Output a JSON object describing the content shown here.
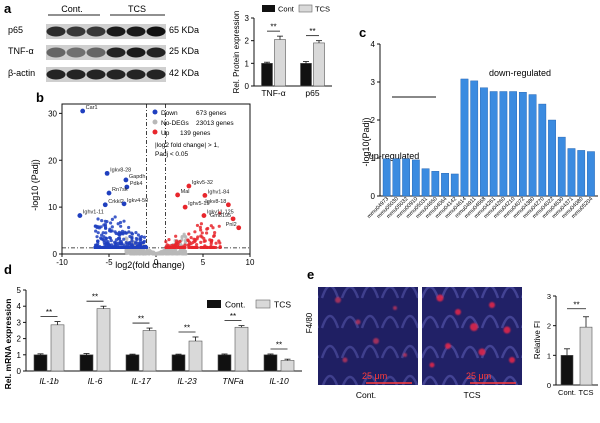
{
  "panel_letters": {
    "a": "a",
    "b": "b",
    "c": "c",
    "d": "d",
    "e": "e"
  },
  "colors": {
    "control": "#111111",
    "treatment": "#d9d9d9",
    "down": "#1f3fbf",
    "up": "#e8262c",
    "nodeg": "#b8b8b8",
    "column": "#3b8be0"
  },
  "panel_a": {
    "blot_groups": [
      "Cont.",
      "TCS"
    ],
    "blot_proteins": [
      "p65",
      "TNF-α",
      "β-actin"
    ],
    "blot_weights": [
      "65 KDa",
      "25 KDa",
      "42 KDa"
    ],
    "chart_data": {
      "type": "bar",
      "categories": [
        "TNF-α",
        "p65"
      ],
      "series": [
        {
          "name": "Cont",
          "values": [
            1.0,
            1.0
          ],
          "errors": [
            0.05,
            0.08
          ]
        },
        {
          "name": "TCS",
          "values": [
            2.05,
            1.9
          ],
          "errors": [
            0.15,
            0.1
          ]
        }
      ],
      "ylabel": "Rel. Protein expression",
      "ylim": [
        0,
        3
      ],
      "yticks": [
        "0",
        "1",
        "2",
        "3"
      ],
      "significance": [
        "**",
        "**"
      ]
    }
  },
  "panel_b": {
    "chart_data": {
      "type": "scatter",
      "xlabel": "log2(fold change)",
      "ylabel": "-log10 (Padj)",
      "xlim": [
        -10,
        10
      ],
      "ylim": [
        0,
        32
      ],
      "xticks": [
        "-10",
        "-5",
        "0",
        "5",
        "10"
      ],
      "yticks": [
        "0",
        "10",
        "20",
        "30"
      ],
      "legend": [
        {
          "label": "Down",
          "count": "673 genes"
        },
        {
          "label": "No-DEGs",
          "count": "23013 genes"
        },
        {
          "label": "Up",
          "count": "139 genes"
        }
      ],
      "criterion": [
        "|log2 fold change| > 1,",
        "Padj < 0.05"
      ],
      "labeled_genes": [
        {
          "gene": "Car1",
          "x": -7.8,
          "y": 30.5,
          "group": "down"
        },
        {
          "gene": "Igkv8-28",
          "x": -5.2,
          "y": 17.2,
          "group": "down"
        },
        {
          "gene": "Gapdh",
          "x": -3.2,
          "y": 15.8,
          "group": "down"
        },
        {
          "gene": "Pdk4",
          "x": -3.1,
          "y": 14.3,
          "group": "down"
        },
        {
          "gene": "Rn7sk",
          "x": -5.0,
          "y": 13.0,
          "group": "down"
        },
        {
          "gene": "Crkkl2",
          "x": -5.4,
          "y": 10.5,
          "group": "down"
        },
        {
          "gene": "Igkv4-50",
          "x": -3.4,
          "y": 10.7,
          "group": "down"
        },
        {
          "gene": "Ighv1-11",
          "x": -8.1,
          "y": 8.2,
          "group": "down"
        },
        {
          "gene": "Igkv5-32",
          "x": 3.5,
          "y": 14.5,
          "group": "up"
        },
        {
          "gene": "Mal",
          "x": 2.3,
          "y": 12.6,
          "group": "up"
        },
        {
          "gene": "Ighv1-84",
          "x": 5.2,
          "y": 12.5,
          "group": "up"
        },
        {
          "gene": "Ighv5-15",
          "x": 3.1,
          "y": 10.0,
          "group": "up"
        },
        {
          "gene": "Igkv8-18",
          "x": 7.7,
          "y": 10.5,
          "group": "up"
        },
        {
          "gene": "Igkv11-125",
          "x": 5.1,
          "y": 8.2,
          "group": "up"
        },
        {
          "gene": "Gm8195",
          "x": 8.2,
          "y": 7.5,
          "group": "up"
        },
        {
          "gene": "Pnl2",
          "x": 8.8,
          "y": 5.6,
          "group": "up"
        }
      ]
    }
  },
  "panel_c": {
    "chart_data": {
      "type": "bar",
      "ylabel": "-log10(Padj)",
      "ylim": [
        0,
        4
      ],
      "yticks": [
        "0",
        "1",
        "2",
        "3",
        "4"
      ],
      "group_labels": [
        "up-regulated",
        "down-regulated"
      ],
      "categories": [
        "mmu04973",
        "mmu05030",
        "mmu05032",
        "mmu00910",
        "mmu05031",
        "mmu04650",
        "mmu04064",
        "mmu04142",
        "mmu04614",
        "mmu04911",
        "mmu04668",
        "mmu04261",
        "mmu04260",
        "mmu04210",
        "mmu04072",
        "mmu04380",
        "mmu04270",
        "mmu04022",
        "mmu04630",
        "mmu04371",
        "mmu04080",
        "mmu05204"
      ],
      "values": [
        0.98,
        0.98,
        0.98,
        0.95,
        0.72,
        0.65,
        0.6,
        0.58,
        3.08,
        3.03,
        2.85,
        2.75,
        2.75,
        2.75,
        2.73,
        2.67,
        2.42,
        2.0,
        1.55,
        1.25,
        1.2,
        1.17
      ],
      "groups": [
        "up",
        "up",
        "up",
        "up",
        "up",
        "up",
        "up",
        "up",
        "down",
        "down",
        "down",
        "down",
        "down",
        "down",
        "down",
        "down",
        "down",
        "down",
        "down",
        "down",
        "down",
        "down"
      ]
    }
  },
  "panel_d": {
    "chart_data": {
      "type": "bar",
      "categories": [
        "IL-1b",
        "IL-6",
        "IL-17",
        "IL-23",
        "TNFa",
        "IL-10"
      ],
      "series": [
        {
          "name": "Cont.",
          "values": [
            1.0,
            1.0,
            1.0,
            1.0,
            1.0,
            1.0
          ],
          "errors": [
            0.06,
            0.08,
            0.04,
            0.04,
            0.05,
            0.05
          ]
        },
        {
          "name": "TCS",
          "values": [
            2.85,
            3.85,
            2.5,
            1.85,
            2.7,
            0.65
          ],
          "errors": [
            0.2,
            0.15,
            0.15,
            0.25,
            0.1,
            0.08
          ]
        }
      ],
      "ylabel": "Rel. mRNA expression",
      "ylim": [
        0,
        5
      ],
      "yticks": [
        "0",
        "1",
        "2",
        "3",
        "4",
        "5"
      ],
      "significance": [
        "**",
        "**",
        "**",
        "**",
        "**",
        "**"
      ]
    }
  },
  "panel_e": {
    "stain_label": "F4/80",
    "images": [
      {
        "caption": "Cont.",
        "scale_bar": "25 μm"
      },
      {
        "caption": "TCS",
        "scale_bar": "25 μm"
      }
    ],
    "chart_data": {
      "type": "bar",
      "categories": [
        "Cont.",
        "TCS"
      ],
      "values": [
        1.0,
        1.95
      ],
      "errors": [
        0.22,
        0.35
      ],
      "ylabel": "Relative FI",
      "ylim": [
        0,
        3
      ],
      "yticks": [
        "0",
        "1",
        "2",
        "3"
      ],
      "significance": "**"
    }
  }
}
